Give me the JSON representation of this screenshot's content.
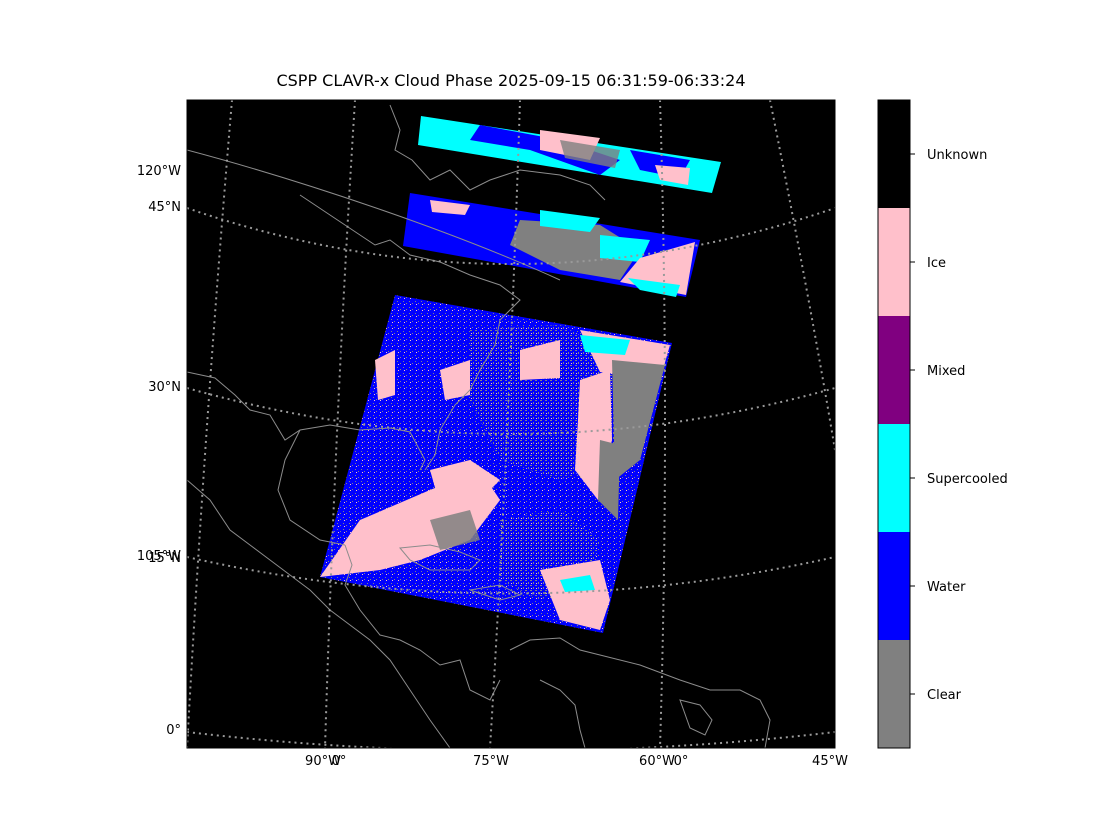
{
  "title": "CSPP CLAVR-x Cloud Phase 2025-09-15 06:31:59-06:33:24",
  "map": {
    "lat_labels": [
      "45°N",
      "30°N",
      "15°N",
      "0°"
    ],
    "lon_labels_left": [
      "120°W",
      "105°W"
    ],
    "lon_labels_bottom": [
      "90°W",
      "0°",
      "75°W",
      "60°W",
      "0°",
      "45°W"
    ]
  },
  "colorbar": {
    "classes": [
      {
        "label": "Unknown",
        "color": "#000000"
      },
      {
        "label": "Ice",
        "color": "#ffc0cb"
      },
      {
        "label": "Mixed",
        "color": "#800080"
      },
      {
        "label": "Supercooled",
        "color": "#00ffff"
      },
      {
        "label": "Water",
        "color": "#0000ff"
      },
      {
        "label": "Clear",
        "color": "#808080"
      }
    ]
  },
  "colors": {
    "ocean_background": "#000000",
    "coastline": "#8c8c8c",
    "graticule": "#9a9a9a"
  }
}
